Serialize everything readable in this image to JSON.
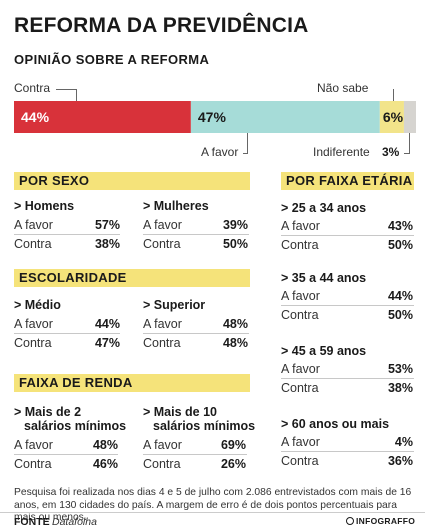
{
  "title": "REFORMA DA PREVIDÊNCIA",
  "subtitle": "OPINIÃO SOBRE A REFORMA",
  "colors": {
    "contra": "#d8323a",
    "a_favor": "#a6dcd8",
    "nao_sabe": "#f2e48a",
    "indiferente": "#d6d4d0",
    "band": "#f5e37a"
  },
  "chart_data": {
    "type": "bar",
    "orientation": "horizontal-stacked",
    "categories": [
      "Opinião sobre a reforma"
    ],
    "series": [
      {
        "name": "Contra",
        "values": [
          44
        ]
      },
      {
        "name": "A favor",
        "values": [
          47
        ]
      },
      {
        "name": "Não sabe",
        "values": [
          6
        ]
      },
      {
        "name": "Indiferente",
        "values": [
          3
        ]
      }
    ],
    "labels": {
      "contra": "44%",
      "a_favor": "47%",
      "nao_sabe": "6%",
      "indiferente": "3%"
    }
  },
  "callouts": {
    "contra": "Contra",
    "nao_sabe": "Não sabe",
    "a_favor": "A favor",
    "indiferente": "Indiferente"
  },
  "sections": {
    "sexo": {
      "title": "POR SEXO",
      "groups": [
        {
          "title": "> Homens",
          "rows": [
            {
              "label": "A favor",
              "value": "57%"
            },
            {
              "label": "Contra",
              "value": "38%"
            }
          ]
        },
        {
          "title": "> Mulheres",
          "rows": [
            {
              "label": "A favor",
              "value": "39%"
            },
            {
              "label": "Contra",
              "value": "50%"
            }
          ]
        }
      ]
    },
    "escolaridade": {
      "title": "ESCOLARIDADE",
      "groups": [
        {
          "title": "> Médio",
          "rows": [
            {
              "label": "A favor",
              "value": "44%"
            },
            {
              "label": "Contra",
              "value": "47%"
            }
          ]
        },
        {
          "title": "> Superior",
          "rows": [
            {
              "label": "A favor",
              "value": "48%"
            },
            {
              "label": "Contra",
              "value": "48%"
            }
          ]
        }
      ]
    },
    "renda": {
      "title": "FAIXA DE RENDA",
      "groups": [
        {
          "title_line1": "> Mais de 2",
          "title_line2": "salários mínimos",
          "rows": [
            {
              "label": "A favor",
              "value": "48%"
            },
            {
              "label": "Contra",
              "value": "46%"
            }
          ]
        },
        {
          "title_line1": "> Mais de 10",
          "title_line2": "salários mínimos",
          "rows": [
            {
              "label": "A favor",
              "value": "69%"
            },
            {
              "label": "Contra",
              "value": "26%"
            }
          ]
        }
      ]
    },
    "idade": {
      "title": "POR FAIXA ETÁRIA",
      "groups": [
        {
          "title": "> 25 a 34 anos",
          "rows": [
            {
              "label": "A favor",
              "value": "43%"
            },
            {
              "label": "Contra",
              "value": "50%"
            }
          ]
        },
        {
          "title": "> 35 a 44 anos",
          "rows": [
            {
              "label": "A favor",
              "value": "44%"
            },
            {
              "label": "Contra",
              "value": "50%"
            }
          ]
        },
        {
          "title": "> 45 a 59 anos",
          "rows": [
            {
              "label": "A favor",
              "value": "53%"
            },
            {
              "label": "Contra",
              "value": "38%"
            }
          ]
        },
        {
          "title": "> 60 anos ou mais",
          "rows": [
            {
              "label": "A favor",
              "value": "4%"
            },
            {
              "label": "Contra",
              "value": "36%"
            }
          ]
        }
      ]
    }
  },
  "footnote": "Pesquisa foi realizada nos dias 4 e 5 de julho com 2.086 entrevistados com mais de 16 anos, em 130 cidades do país. A margem de erro é de dois pontos percentuais para mais ou menos.",
  "footer": {
    "fonte_label": "FONTE",
    "fonte_value": "Datafolha",
    "logo": "INFOGRAFFO"
  }
}
